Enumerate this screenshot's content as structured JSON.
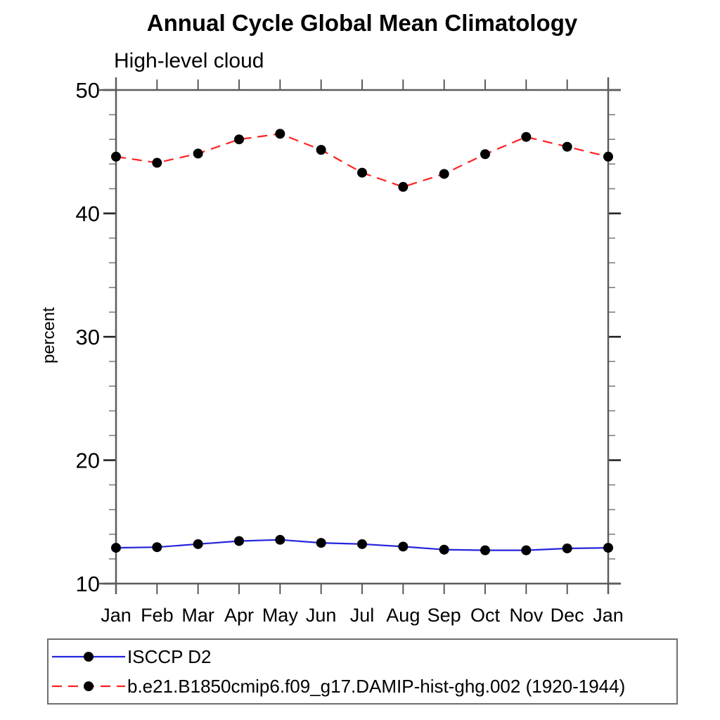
{
  "chart": {
    "title": "Annual Cycle Global Mean Climatology",
    "subtitle": "High-level cloud",
    "ylabel": "percent"
  },
  "chart_data": {
    "type": "line",
    "title": "Annual Cycle Global Mean Climatology",
    "subtitle": "High-level cloud",
    "xlabel": "",
    "ylabel": "percent",
    "categories": [
      "Jan",
      "Feb",
      "Mar",
      "Apr",
      "May",
      "Jun",
      "Jul",
      "Aug",
      "Sep",
      "Oct",
      "Nov",
      "Dec",
      "Jan"
    ],
    "ylim": [
      10,
      50
    ],
    "y_major_ticks": [
      10,
      20,
      30,
      40,
      50
    ],
    "y_minor_step": 2,
    "grid": false,
    "legend_position": "bottom-left",
    "series": [
      {
        "name": "ISCCP D2",
        "color": "#2424dd",
        "style": "solid",
        "marker": "filled-circle",
        "marker_color": "#000000",
        "values": [
          12.9,
          12.95,
          13.2,
          13.45,
          13.55,
          13.3,
          13.2,
          13.0,
          12.75,
          12.7,
          12.7,
          12.85,
          12.9
        ]
      },
      {
        "name": "b.e21.B1850cmip6.f09_g17.DAMIP-hist-ghg.002 (1920-1944)",
        "color": "#ff2222",
        "style": "dashed",
        "marker": "filled-circle",
        "marker_color": "#000000",
        "values": [
          44.6,
          44.1,
          44.85,
          46.0,
          46.45,
          45.15,
          43.3,
          42.15,
          43.2,
          44.8,
          46.2,
          45.4,
          44.6
        ]
      }
    ],
    "style_colors": {
      "axis": "#5c5c5c",
      "major_tick": "#1a1a1a",
      "minor_tick": "#808080",
      "text": "#000000"
    }
  }
}
